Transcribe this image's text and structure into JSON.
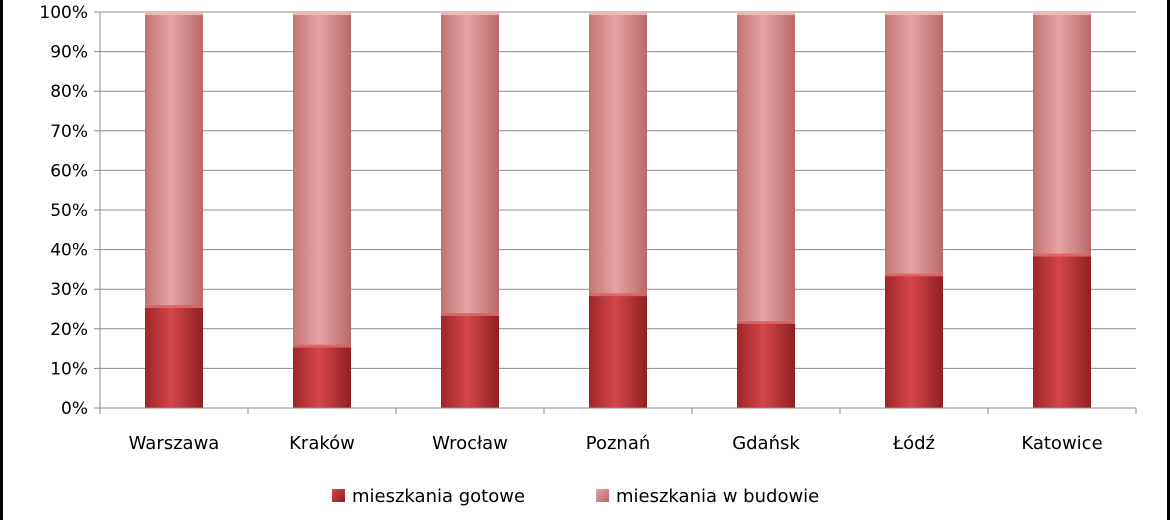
{
  "chart_data": {
    "type": "bar",
    "stacked": true,
    "percent": true,
    "categories": [
      "Warszawa",
      "Kraków",
      "Wrocław",
      "Poznań",
      "Gdańsk",
      "Łódź",
      "Katowice"
    ],
    "series": [
      {
        "name": "mieszkania gotowe",
        "values": [
          26,
          16,
          24,
          29,
          22,
          34,
          39
        ],
        "color": "#c0393b"
      },
      {
        "name": "mieszkania w budowie",
        "values": [
          74,
          84,
          76,
          71,
          78,
          66,
          61
        ],
        "color": "#d98b8d"
      }
    ],
    "ylim": [
      0,
      100
    ],
    "yticks": [
      "0%",
      "10%",
      "20%",
      "30%",
      "40%",
      "50%",
      "60%",
      "70%",
      "80%",
      "90%",
      "100%"
    ],
    "grid": true,
    "legend": "bottom",
    "title": "",
    "xlabel": "",
    "ylabel": ""
  }
}
